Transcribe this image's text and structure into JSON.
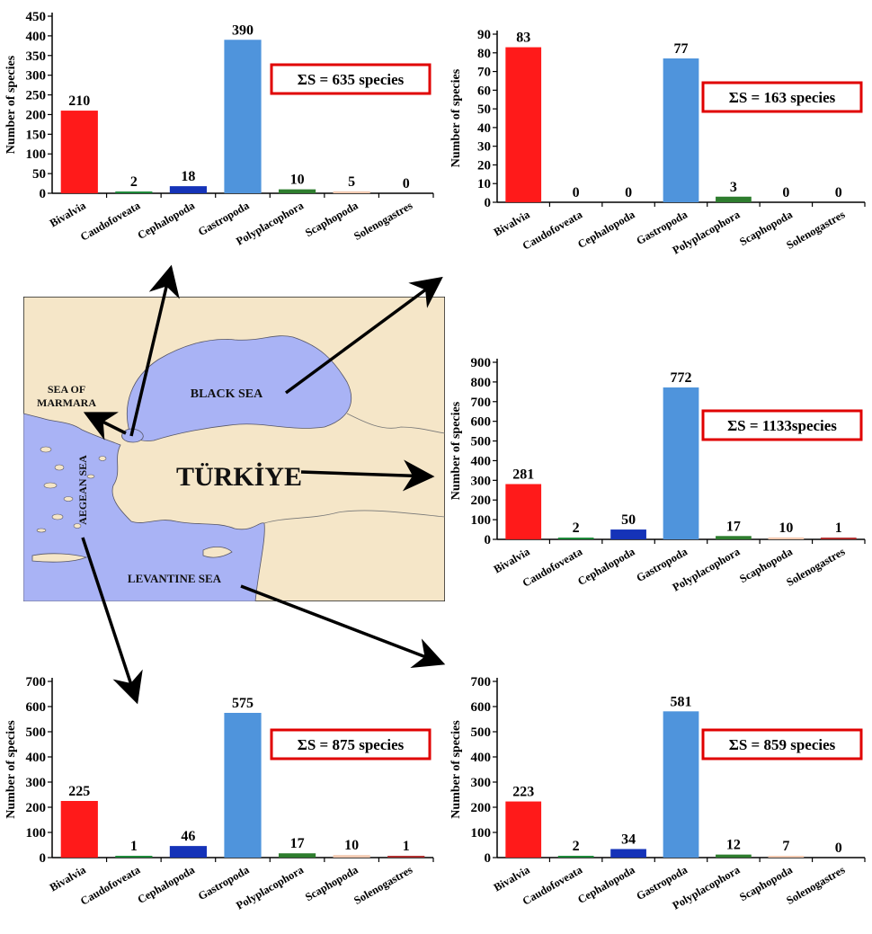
{
  "colors": {
    "Bivalvia": "#ff1a1a",
    "Caudofoveata": "#1e8a3a",
    "Cephalopoda": "#1533b8",
    "Gastropoda": "#4f94dc",
    "Polyplacophora": "#2e7d2e",
    "Scaphopoda": "#f2c9b0",
    "Solenogastres": "#b03030",
    "sum_box_border": "#e00000",
    "land": "#f5e6c8",
    "sea": "#a9b3f5"
  },
  "map": {
    "labels": {
      "marmara_1": "SEA OF",
      "marmara_2": "MARMARA",
      "black_sea": "BLACK SEA",
      "country": "TÜRKİYE",
      "aegean": "AEGEAN SEA",
      "levantine": "LEVANTINE SEA"
    }
  },
  "chart_data": [
    {
      "id": "marmara",
      "type": "bar",
      "categories": [
        "Bivalvia",
        "Caudofoveata",
        "Cephalopoda",
        "Gastropoda",
        "Polyplacophora",
        "Scaphopoda",
        "Solenogastres"
      ],
      "values": [
        210,
        2,
        18,
        390,
        10,
        5,
        0
      ],
      "value_labels": [
        "210",
        "2",
        "18",
        "390",
        "10",
        "5",
        "0"
      ],
      "ylabel": "Number of species",
      "ylim": [
        0,
        450
      ],
      "yticks": [
        "0",
        "50",
        "100",
        "150",
        "200",
        "250",
        "300",
        "350",
        "400",
        "450"
      ],
      "ytick_values": [
        0,
        50,
        100,
        150,
        200,
        250,
        300,
        350,
        400,
        450
      ],
      "sum_label": "ΣS =  635 species"
    },
    {
      "id": "black_sea",
      "type": "bar",
      "categories": [
        "Bivalvia",
        "Caudofoveata",
        "Cephalopoda",
        "Gastropoda",
        "Polyplacophora",
        "Scaphopoda",
        "Solenogastres"
      ],
      "values": [
        83,
        0,
        0,
        77,
        3,
        0,
        0
      ],
      "value_labels": [
        "83",
        "0",
        "0",
        "77",
        "3",
        "0",
        "0"
      ],
      "ylabel": "Number of species",
      "ylim": [
        0,
        90
      ],
      "yticks": [
        "0",
        "10",
        "20",
        "30",
        "40",
        "50",
        "60",
        "70",
        "80",
        "90"
      ],
      "ytick_values": [
        0,
        10,
        20,
        30,
        40,
        50,
        60,
        70,
        80,
        90
      ],
      "sum_label": "ΣS = 163  species"
    },
    {
      "id": "turkiye",
      "type": "bar",
      "categories": [
        "Bivalvia",
        "Caudofoveata",
        "Cephalopoda",
        "Gastropoda",
        "Polyplacophora",
        "Scaphopoda",
        "Solenogastres"
      ],
      "values": [
        281,
        2,
        50,
        772,
        17,
        10,
        1
      ],
      "value_labels": [
        "281",
        "2",
        "50",
        "772",
        "17",
        "10",
        "1"
      ],
      "ylabel": "Number of species",
      "ylim": [
        0,
        900
      ],
      "yticks": [
        "0",
        "100",
        "200",
        "300",
        "400",
        "500",
        "600",
        "700",
        "800",
        "900"
      ],
      "ytick_values": [
        0,
        100,
        200,
        300,
        400,
        500,
        600,
        700,
        800,
        900
      ],
      "sum_label": "ΣS = 1133species"
    },
    {
      "id": "aegean",
      "type": "bar",
      "categories": [
        "Bivalvia",
        "Caudofoveata",
        "Cephalopoda",
        "Gastropoda",
        "Polyplacophora",
        "Scaphopoda",
        "Solenogastres"
      ],
      "values": [
        225,
        1,
        46,
        575,
        17,
        10,
        1
      ],
      "value_labels": [
        "225",
        "1",
        "46",
        "575",
        "17",
        "10",
        "1"
      ],
      "ylabel": "Number of species",
      "ylim": [
        0,
        700
      ],
      "yticks": [
        "0",
        "100",
        "200",
        "300",
        "400",
        "500",
        "600",
        "700"
      ],
      "ytick_values": [
        0,
        100,
        200,
        300,
        400,
        500,
        600,
        700
      ],
      "sum_label": "ΣS =  875  species"
    },
    {
      "id": "levantine",
      "type": "bar",
      "categories": [
        "Bivalvia",
        "Caudofoveata",
        "Cephalopoda",
        "Gastropoda",
        "Polyplacophora",
        "Scaphopoda",
        "Solenogastres"
      ],
      "values": [
        223,
        2,
        34,
        581,
        12,
        7,
        0
      ],
      "value_labels": [
        "223",
        "2",
        "34",
        "581",
        "12",
        "7",
        "0"
      ],
      "ylabel": "Number of species",
      "ylim": [
        0,
        700
      ],
      "yticks": [
        "0",
        "100",
        "200",
        "300",
        "400",
        "500",
        "600",
        "700"
      ],
      "ytick_values": [
        0,
        100,
        200,
        300,
        400,
        500,
        600,
        700
      ],
      "sum_label": "ΣS =  859   species"
    }
  ]
}
